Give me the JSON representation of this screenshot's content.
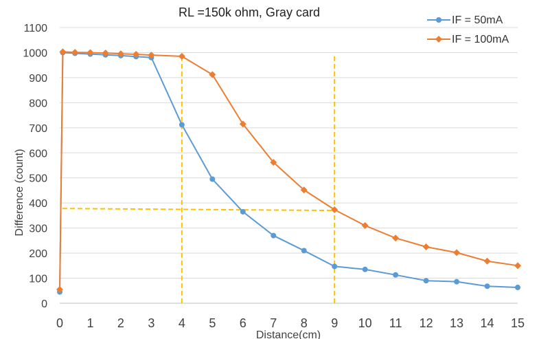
{
  "chart_data": {
    "type": "line",
    "title": "RL =150k ohm, Gray card",
    "xlabel": "Distance(cm)",
    "ylabel": "Difference (count)",
    "xlim": [
      0,
      15
    ],
    "ylim": [
      0,
      1100
    ],
    "x_ticks": [
      0,
      1,
      2,
      3,
      4,
      5,
      6,
      7,
      8,
      9,
      10,
      11,
      12,
      13,
      14,
      15
    ],
    "y_ticks": [
      0,
      100,
      200,
      300,
      400,
      500,
      600,
      700,
      800,
      900,
      1000,
      1100
    ],
    "grid": "horizontal",
    "legend_position": "top-right",
    "series": [
      {
        "name": "IF = 50mA",
        "color": "#5B9BD5",
        "marker": "circle",
        "x": [
          0,
          0.1,
          0.5,
          1,
          1.5,
          2,
          2.5,
          3,
          4,
          5,
          6,
          7,
          8,
          9,
          10,
          11,
          12,
          13,
          14,
          15
        ],
        "y": [
          45,
          1000,
          997,
          994,
          991,
          988,
          984,
          980,
          712,
          495,
          365,
          270,
          210,
          147,
          135,
          113,
          90,
          86,
          68,
          63
        ]
      },
      {
        "name": "IF = 100mA",
        "color": "#ED7D31",
        "marker": "diamond",
        "x": [
          0,
          0.1,
          0.5,
          1,
          1.5,
          2,
          2.5,
          3,
          4,
          5,
          6,
          7,
          8,
          9,
          10,
          11,
          12,
          13,
          14,
          15
        ],
        "y": [
          55,
          1003,
          1001,
          1000,
          998,
          995,
          993,
          990,
          985,
          912,
          715,
          562,
          452,
          373,
          310,
          260,
          225,
          202,
          168,
          150
        ]
      }
    ],
    "reference_lines": {
      "color": "#FFC000",
      "style": "dashed",
      "vertical_x": [
        4,
        9
      ],
      "horizontal_y": 378,
      "horizontal_x_range": [
        0,
        9
      ]
    }
  }
}
